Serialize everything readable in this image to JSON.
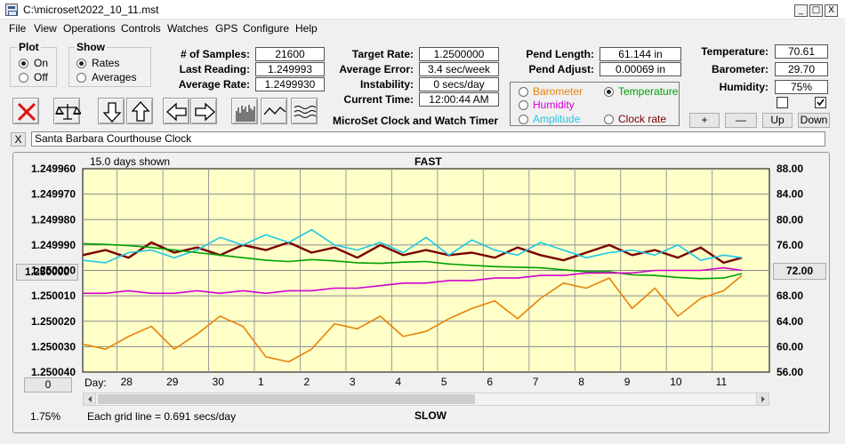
{
  "window": {
    "title": "C:\\microset\\2022_10_11.mst",
    "minimize": "_",
    "restore": "□",
    "close": "X"
  },
  "menu": [
    "File",
    "View",
    "Operations",
    "Controls",
    "Watches",
    "GPS",
    "Configure",
    "Help"
  ],
  "plot_group": {
    "title": "Plot",
    "on": "On",
    "off": "Off",
    "selected": "On"
  },
  "show_group": {
    "title": "Show",
    "rates": "Rates",
    "averages": "Averages",
    "selected": "Rates"
  },
  "stats": {
    "samples_label": "# of Samples:",
    "samples": "21600",
    "last_reading_label": "Last Reading:",
    "last_reading": "1.249993",
    "average_rate_label": "Average Rate:",
    "average_rate": "1.2499930"
  },
  "target": {
    "target_rate_label": "Target Rate:",
    "target_rate": "1.2500000",
    "average_error_label": "Average Error:",
    "average_error": "3.4 sec/week",
    "instability_label": "Instability:",
    "instability": "0 secs/day",
    "current_time_label": "Current Time:",
    "current_time": "12:00:44 AM",
    "app_caption": "MicroSet Clock and Watch Timer"
  },
  "pendulum": {
    "length_label": "Pend Length:",
    "length": "61.144 in",
    "adjust_label": "Pend Adjust:",
    "adjust": "0.00069 in"
  },
  "sensor_select": {
    "barometer": "Barometer",
    "temperature": "Temperature",
    "humidity": "Humidity",
    "amplitude": "Amplitude",
    "clock_rate": "Clock rate",
    "selected": "Temperature",
    "colors": {
      "barometer": "#e8820a",
      "temperature": "#00a000",
      "humidity": "#d000d0",
      "amplitude": "#1ec8e6",
      "clock_rate": "#7a0000"
    }
  },
  "env": {
    "temperature_label": "Temperature:",
    "temperature": "70.61",
    "barometer_label": "Barometer:",
    "barometer": "29.70",
    "humidity_label": "Humidity:",
    "humidity": "75%",
    "plus": "+",
    "minus": "—",
    "up": "Up",
    "down": "Down"
  },
  "toolbar": [
    "close-x",
    "balance-scale",
    "arrow-down",
    "arrow-up",
    "arrow-left",
    "arrow-right",
    "bar-graph",
    "wave",
    "triple-wave"
  ],
  "clock": {
    "close": "X",
    "name": "Santa Barbara Courthouse Clock"
  },
  "chart_labels": {
    "days_shown": "15.0 days shown",
    "fast": "FAST",
    "slow": "SLOW",
    "day_prefix": "Day:",
    "grid_note": "Each grid line = 0.691 secs/day",
    "left_button": "0",
    "right_button": "72.00",
    "center_left_button": "1.250000",
    "bottom_left": "1.75%"
  },
  "chart_data": {
    "type": "line",
    "x_unit": "day",
    "x_tick_labels": [
      "28",
      "29",
      "30",
      "1",
      "2",
      "3",
      "4",
      "5",
      "6",
      "7",
      "8",
      "9",
      "10",
      "11"
    ],
    "x": [
      0,
      0.5,
      1,
      1.5,
      2,
      2.5,
      3,
      3.5,
      4,
      4.5,
      5,
      5.5,
      6,
      6.5,
      7,
      7.5,
      8,
      8.5,
      9,
      9.5,
      10,
      10.5,
      11,
      11.5,
      12,
      12.5,
      13,
      13.5,
      14,
      14.4
    ],
    "y_left": {
      "labels": [
        "1.249960",
        "1.249970",
        "1.249980",
        "1.249990",
        "1.250000",
        "1.250010",
        "1.250020",
        "1.250030",
        "1.250040"
      ],
      "range": [
        1.24996,
        1.25004
      ],
      "inverted": true
    },
    "y_right": {
      "labels": [
        "88.00",
        "84.00",
        "80.00",
        "76.00",
        "72.00",
        "68.00",
        "64.00",
        "60.00",
        "56.00"
      ],
      "range": [
        56,
        88
      ]
    },
    "series": [
      {
        "name": "Clock rate",
        "axis": "left",
        "color": "#7a0000",
        "values": [
          1.249994,
          1.249992,
          1.249995,
          1.249989,
          1.249993,
          1.249991,
          1.249994,
          1.24999,
          1.249992,
          1.249989,
          1.249993,
          1.249991,
          1.249995,
          1.24999,
          1.249994,
          1.249992,
          1.249994,
          1.249993,
          1.249995,
          1.249991,
          1.249994,
          1.249996,
          1.249993,
          1.24999,
          1.249994,
          1.249992,
          1.249995,
          1.249991,
          1.249997,
          1.249995
        ]
      },
      {
        "name": "Amplitude",
        "axis": "left",
        "color": "#1ec8e6",
        "values": [
          1.249996,
          1.249997,
          1.249993,
          1.249992,
          1.249995,
          1.249992,
          1.249987,
          1.24999,
          1.249986,
          1.249989,
          1.249984,
          1.24999,
          1.249992,
          1.249989,
          1.249993,
          1.249987,
          1.249994,
          1.249988,
          1.249992,
          1.249994,
          1.249989,
          1.249992,
          1.249995,
          1.249993,
          1.249992,
          1.249994,
          1.24999,
          1.249996,
          1.249994,
          1.249995
        ]
      },
      {
        "name": "Temperature",
        "axis": "right",
        "color": "#00a000",
        "values": [
          76.2,
          76.1,
          75.9,
          75.6,
          75.2,
          74.8,
          74.4,
          74.0,
          73.6,
          73.4,
          73.7,
          73.5,
          73.2,
          73.1,
          73.3,
          73.4,
          73.0,
          72.8,
          72.6,
          72.5,
          72.4,
          72.1,
          71.8,
          71.8,
          71.3,
          71.2,
          70.9,
          70.7,
          70.8,
          71.5
        ]
      },
      {
        "name": "Humidity",
        "axis": "left",
        "color": "#d000d0",
        "values": [
          1.250009,
          1.250009,
          1.250008,
          1.250009,
          1.250009,
          1.250008,
          1.250009,
          1.250008,
          1.250009,
          1.250008,
          1.250008,
          1.250007,
          1.250007,
          1.250006,
          1.250005,
          1.250005,
          1.250004,
          1.250004,
          1.250003,
          1.250003,
          1.250002,
          1.250002,
          1.250001,
          1.250001,
          1.250001,
          1.25,
          1.25,
          1.25,
          1.249999,
          1.25
        ]
      },
      {
        "name": "Barometer",
        "axis": "left",
        "color": "#e8820a",
        "values": [
          1.250029,
          1.250031,
          1.250026,
          1.250022,
          1.250031,
          1.250025,
          1.250018,
          1.250022,
          1.250034,
          1.250036,
          1.250031,
          1.250021,
          1.250023,
          1.250018,
          1.250026,
          1.250024,
          1.250019,
          1.250015,
          1.250012,
          1.250019,
          1.250011,
          1.250005,
          1.250007,
          1.250003,
          1.250015,
          1.250007,
          1.250018,
          1.250011,
          1.250008,
          1.250002
        ]
      }
    ]
  }
}
